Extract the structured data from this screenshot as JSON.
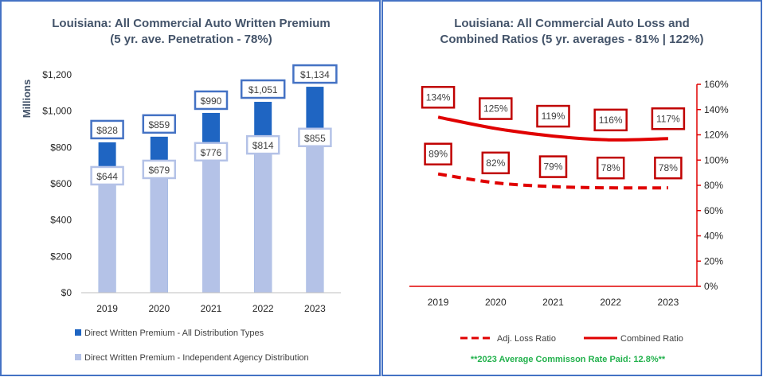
{
  "colors": {
    "border": "#4472c4",
    "all_dist": "#1f65c2",
    "indep": "#b4c2e7",
    "label_box_dark": "#4472c4",
    "label_box_light": "#b4c2e7",
    "ratio": "#e00000",
    "note": "#22b14c"
  },
  "chart_data": [
    {
      "type": "bar",
      "title_line1": "Louisiana: All Commercial Auto Written Premium",
      "title_line2": "(5 yr. ave. Penetration - 78%)",
      "ylabel": "Millions",
      "ylim": [
        0,
        1200
      ],
      "yticks": [
        0,
        200,
        400,
        600,
        800,
        1000,
        1200
      ],
      "ytick_labels": [
        "$0",
        "$200",
        "$400",
        "$600",
        "$800",
        "$1,000",
        "$1,200"
      ],
      "categories": [
        "2019",
        "2020",
        "2021",
        "2022",
        "2023"
      ],
      "series": [
        {
          "name": "Direct Written Premium - All Distribution Types",
          "values": [
            828,
            859,
            990,
            1051,
            1134
          ],
          "labels": [
            "$828",
            "$859",
            "$990",
            "$1,051",
            "$1,134"
          ]
        },
        {
          "name": "Direct Written Premium - Independent Agency Distribution",
          "values": [
            644,
            679,
            776,
            814,
            855
          ],
          "labels": [
            "$644",
            "$679",
            "$776",
            "$814",
            "$855"
          ]
        }
      ]
    },
    {
      "type": "line",
      "title_line1": "Louisiana: All Commercial Auto Loss and",
      "title_line2": "Combined Ratios (5 yr. averages - 81% | 122%)",
      "ylim": [
        0,
        160
      ],
      "yticks": [
        0,
        20,
        40,
        60,
        80,
        100,
        120,
        140,
        160
      ],
      "ytick_labels": [
        "0%",
        "20%",
        "40%",
        "60%",
        "80%",
        "100%",
        "120%",
        "140%",
        "160%"
      ],
      "categories": [
        "2019",
        "2020",
        "2021",
        "2022",
        "2023"
      ],
      "series": [
        {
          "name": "Adj. Loss Ratio",
          "style": "dashed",
          "values": [
            89,
            82,
            79,
            78,
            78
          ],
          "labels": [
            "89%",
            "82%",
            "79%",
            "78%",
            "78%"
          ]
        },
        {
          "name": "Combined Ratio",
          "style": "solid",
          "values": [
            134,
            125,
            119,
            116,
            117
          ],
          "labels": [
            "134%",
            "125%",
            "119%",
            "116%",
            "117%"
          ]
        }
      ],
      "note": "**2023 Average Commisson Rate Paid: 12.8%**"
    }
  ]
}
